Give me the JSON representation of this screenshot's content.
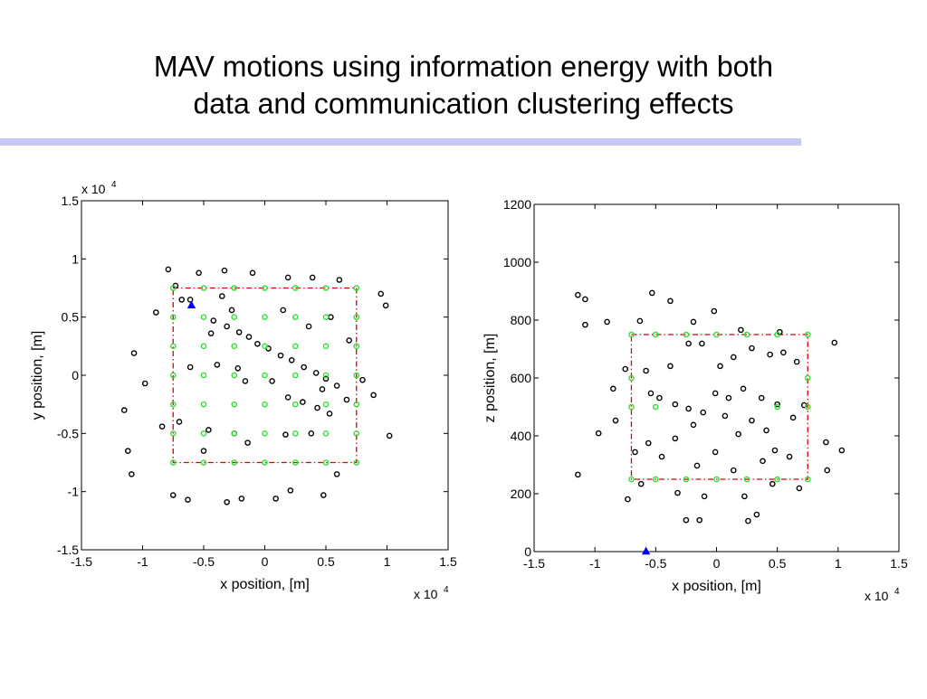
{
  "slide": {
    "title": [
      "MAV motions using information energy with both",
      "data and communication clustering effects"
    ]
  },
  "chart_data": [
    {
      "type": "scatter",
      "xlabel": "x position, [m]",
      "ylabel": "y position, [m]",
      "x_multiplier": {
        "base": "x 10",
        "exponent": "4"
      },
      "y_multiplier": {
        "base": "x 10",
        "exponent": "4"
      },
      "xlim": [
        -1.5,
        1.5
      ],
      "ylim": [
        -1.5,
        1.5
      ],
      "xticks": [
        -1.5,
        -1,
        -0.5,
        0,
        0.5,
        1,
        1.5
      ],
      "yticks": [
        -1.5,
        -1,
        -0.5,
        0,
        0.5,
        1,
        1.5
      ],
      "series": [
        {
          "kind": "line",
          "color": "#dd0000",
          "x": [
            -0.75,
            0.75,
            0.75,
            -0.75,
            -0.75
          ],
          "values": [
            0.75,
            0.75,
            -0.75,
            -0.75,
            0.75
          ]
        },
        {
          "kind": "points",
          "color": "#000000",
          "x": [
            -0.79,
            -0.73,
            -0.54,
            -0.33,
            -0.1,
            0.19,
            0.39,
            0.61,
            -0.89,
            -1.07,
            -0.98,
            -1.15,
            -1.12,
            -1.09,
            -0.75,
            -0.63,
            -0.31,
            -0.19,
            0.09,
            0.21,
            0.48,
            0.59,
            1.02,
            0.95,
            0.99,
            -0.84,
            -0.7,
            -0.46,
            -0.5,
            -0.25,
            -0.14,
            0.17,
            0.38,
            0.53,
            0.67,
            0.89,
            0.8,
            -0.42,
            -0.31,
            -0.21,
            -0.13,
            -0.06,
            0.03,
            0.13,
            0.22,
            0.32,
            0.42,
            0.5,
            0.59,
            -0.61,
            -0.39,
            -0.22,
            -0.16,
            0.06,
            0.19,
            0.31,
            0.43,
            0.47,
            0.69,
            0.54,
            0.36,
            0.15,
            -0.27,
            -0.35,
            -0.61,
            -0.44,
            -0.68
          ],
          "values": [
            0.91,
            0.77,
            0.88,
            0.9,
            0.88,
            0.84,
            0.84,
            0.82,
            0.54,
            0.19,
            -0.07,
            -0.3,
            -0.65,
            -0.85,
            -1.03,
            -1.07,
            -1.09,
            -1.06,
            -1.06,
            -0.99,
            -1.03,
            -0.85,
            -0.52,
            0.7,
            0.6,
            -0.44,
            -0.4,
            -0.47,
            -0.65,
            -0.5,
            -0.58,
            -0.51,
            -0.5,
            -0.33,
            -0.21,
            -0.17,
            -0.04,
            0.47,
            0.42,
            0.37,
            0.33,
            0.27,
            0.23,
            0.17,
            0.13,
            0.07,
            0.02,
            -0.03,
            -0.09,
            0.07,
            0.09,
            0.06,
            -0.05,
            -0.05,
            -0.19,
            -0.23,
            -0.28,
            -0.12,
            0.3,
            0.5,
            0.42,
            0.56,
            0.56,
            0.68,
            0.65,
            0.36,
            0.65
          ]
        },
        {
          "kind": "points",
          "color": "#33dd33",
          "x": [
            -0.75,
            -0.5,
            -0.25,
            0,
            0.25,
            0.5,
            0.75,
            -0.75,
            -0.5,
            -0.25,
            0,
            0.25,
            0.5,
            0.75,
            -0.75,
            -0.5,
            -0.25,
            0,
            0.25,
            0.5,
            0.75,
            -0.75,
            -0.5,
            -0.25,
            0,
            0.25,
            0.5,
            0.75,
            -0.75,
            -0.5,
            -0.25,
            0,
            0.25,
            0.5,
            0.75,
            -0.75,
            -0.5,
            -0.25,
            0,
            0.25,
            0.5,
            0.75,
            -0.75,
            -0.5,
            -0.25,
            0,
            0.25,
            0.5,
            0.75
          ],
          "values": [
            0.75,
            0.75,
            0.75,
            0.75,
            0.75,
            0.75,
            0.75,
            0.5,
            0.5,
            0.5,
            0.5,
            0.5,
            0.5,
            0.5,
            0.25,
            0.25,
            0.25,
            0.25,
            0.25,
            0.25,
            0.25,
            0,
            0,
            0,
            0,
            0,
            0,
            0,
            -0.25,
            -0.25,
            -0.25,
            -0.25,
            -0.25,
            -0.25,
            -0.25,
            -0.5,
            -0.5,
            -0.5,
            -0.5,
            -0.5,
            -0.5,
            -0.5,
            -0.75,
            -0.75,
            -0.75,
            -0.75,
            -0.75,
            -0.75,
            -0.75
          ]
        },
        {
          "kind": "triangles",
          "color": "#0000ff",
          "x": [
            -0.6
          ],
          "values": [
            0.6
          ]
        }
      ]
    },
    {
      "type": "scatter",
      "xlabel": "x position, [m]",
      "ylabel": "z position, [m]",
      "x_multiplier": {
        "base": "x 10",
        "exponent": "4"
      },
      "xlim": [
        -1.5,
        1.5
      ],
      "ylim": [
        0,
        1200
      ],
      "xticks": [
        -1.5,
        -1,
        -0.5,
        0,
        0.5,
        1,
        1.5
      ],
      "yticks": [
        0,
        200,
        400,
        600,
        800,
        1000,
        1200
      ],
      "series": [
        {
          "kind": "line",
          "color": "#dd0000",
          "x": [
            -0.7,
            0.75,
            0.75,
            -0.7,
            -0.7
          ],
          "values": [
            750,
            750,
            250,
            250,
            750
          ]
        },
        {
          "kind": "points",
          "color": "#000000",
          "x": [
            -1.14,
            -1.08,
            -1.08,
            -0.9,
            -0.53,
            -0.38,
            -0.63,
            -0.19,
            -0.02,
            0.2,
            0.52,
            0.97,
            -1.14,
            -0.97,
            -0.83,
            -0.73,
            -0.62,
            -0.32,
            -0.1,
            -0.25,
            -0.14,
            0.26,
            0.33,
            0.23,
            0.46,
            0.68,
            0.91,
            1.03,
            0.9,
            -0.85,
            -0.75,
            -0.58,
            -0.54,
            -0.47,
            -0.34,
            -0.23,
            -0.11,
            -0.38,
            -0.23,
            -0.12,
            0.03,
            0.14,
            0.29,
            0.44,
            0.55,
            0.66,
            0.22,
            0.37,
            0.5,
            0.63,
            0.72,
            0.07,
            0.18,
            0.29,
            0.41,
            0.48,
            0.6,
            -0.19,
            -0.34,
            -0.45,
            -0.56,
            -0.67,
            -0.16,
            -0.01,
            0.14,
            0.38,
            -0.01,
            0.1
          ],
          "values": [
            887,
            872,
            784,
            794,
            894,
            866,
            797,
            794,
            831,
            766,
            759,
            722,
            266,
            409,
            453,
            181,
            234,
            203,
            191,
            109,
            109,
            106,
            128,
            191,
            234,
            219,
            281,
            350,
            378,
            563,
            631,
            625,
            547,
            531,
            509,
            494,
            481,
            641,
            719,
            719,
            641,
            672,
            703,
            681,
            688,
            656,
            563,
            531,
            509,
            463,
            506,
            469,
            406,
            453,
            419,
            350,
            328,
            438,
            391,
            328,
            375,
            344,
            297,
            344,
            281,
            313,
            547,
            531
          ]
        },
        {
          "kind": "points",
          "color": "#33dd33",
          "x": [
            -0.7,
            -0.5,
            -0.25,
            0,
            0.25,
            0.5,
            0.75,
            -0.7,
            -0.5,
            -0.25,
            0,
            0.25,
            0.5,
            0.75,
            -0.7,
            -0.5,
            0.5,
            0.75,
            -0.7,
            0.75
          ],
          "values": [
            750,
            750,
            750,
            750,
            750,
            750,
            750,
            250,
            250,
            250,
            250,
            250,
            250,
            250,
            500,
            500,
            500,
            500,
            600,
            600
          ]
        },
        {
          "kind": "triangles",
          "color": "#0000ff",
          "x": [
            -0.58
          ],
          "values": [
            0
          ]
        }
      ]
    }
  ]
}
